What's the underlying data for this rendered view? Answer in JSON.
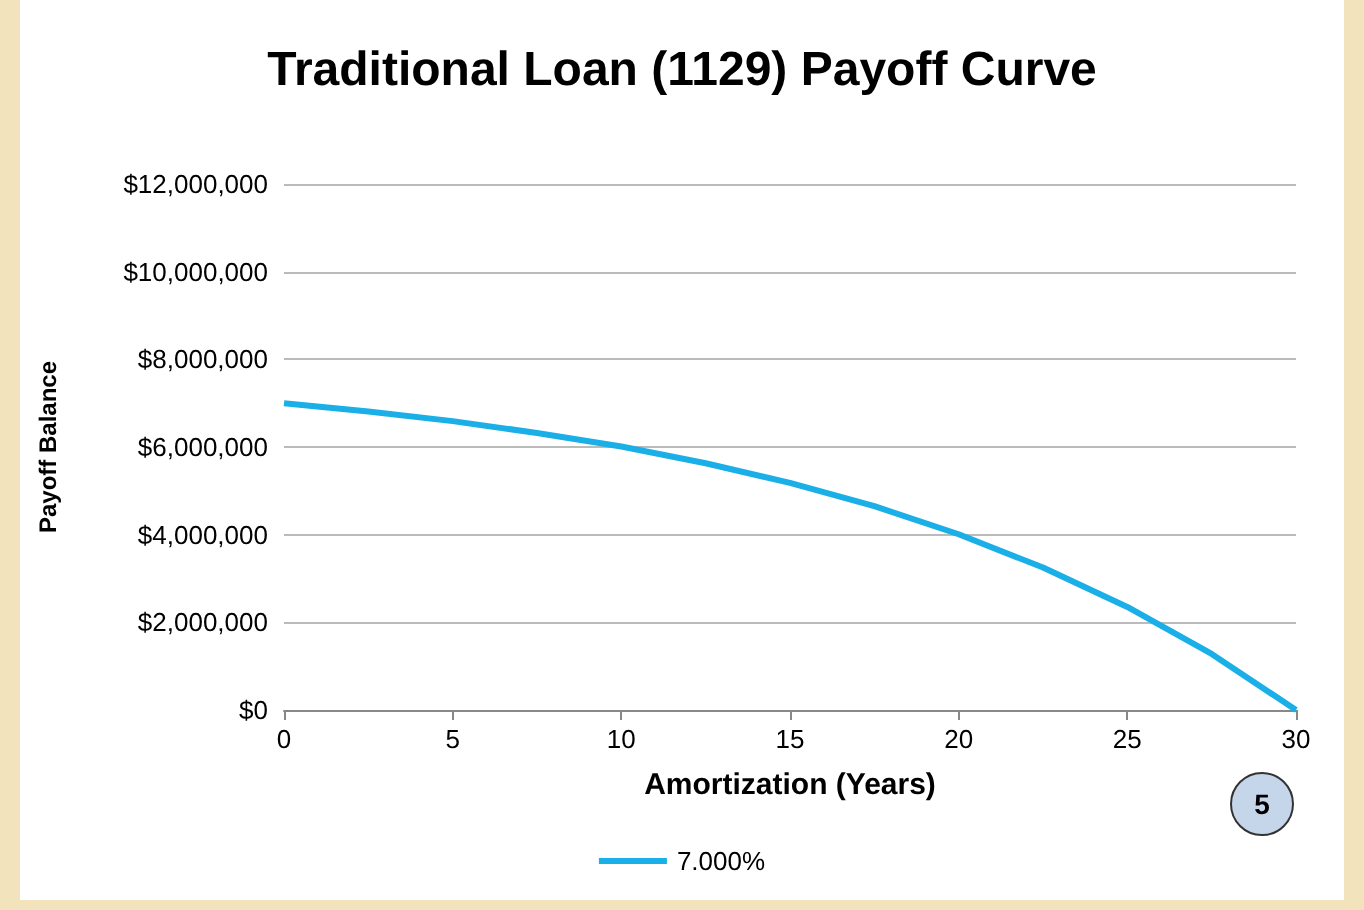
{
  "chart_data": {
    "type": "line",
    "title": "Traditional Loan (1129) Payoff Curve",
    "xlabel": "Amortization (Years)",
    "ylabel": "Payoff Balance",
    "x": [
      0,
      2.5,
      5,
      7.5,
      10,
      12.5,
      15,
      17.5,
      20,
      22.5,
      25,
      27.5,
      30
    ],
    "series": [
      {
        "name": "7.000%",
        "color": "#1aafe6",
        "values": [
          7000000,
          6810000,
          6590000,
          6320000,
          6010000,
          5630000,
          5180000,
          4650000,
          4010000,
          3250000,
          2350000,
          1280000,
          0
        ]
      }
    ],
    "xlim": [
      0,
      30
    ],
    "xticks": [
      0,
      5,
      10,
      15,
      20,
      25,
      30
    ],
    "ylim": [
      0,
      12000000
    ],
    "yticks": [
      {
        "value": 0,
        "label": "$0"
      },
      {
        "value": 2000000,
        "label": "$2,000,000"
      },
      {
        "value": 4000000,
        "label": "$4,000,000"
      },
      {
        "value": 6000000,
        "label": "$6,000,000"
      },
      {
        "value": 8000000,
        "label": "$8,000,000"
      },
      {
        "value": 10000000,
        "label": "$10,000,000"
      },
      {
        "value": 12000000,
        "label": "$12,000,000"
      }
    ],
    "grid": "y",
    "legend": "bottom",
    "marker": "none",
    "line_style": "solid",
    "annotations": [
      "5"
    ]
  }
}
